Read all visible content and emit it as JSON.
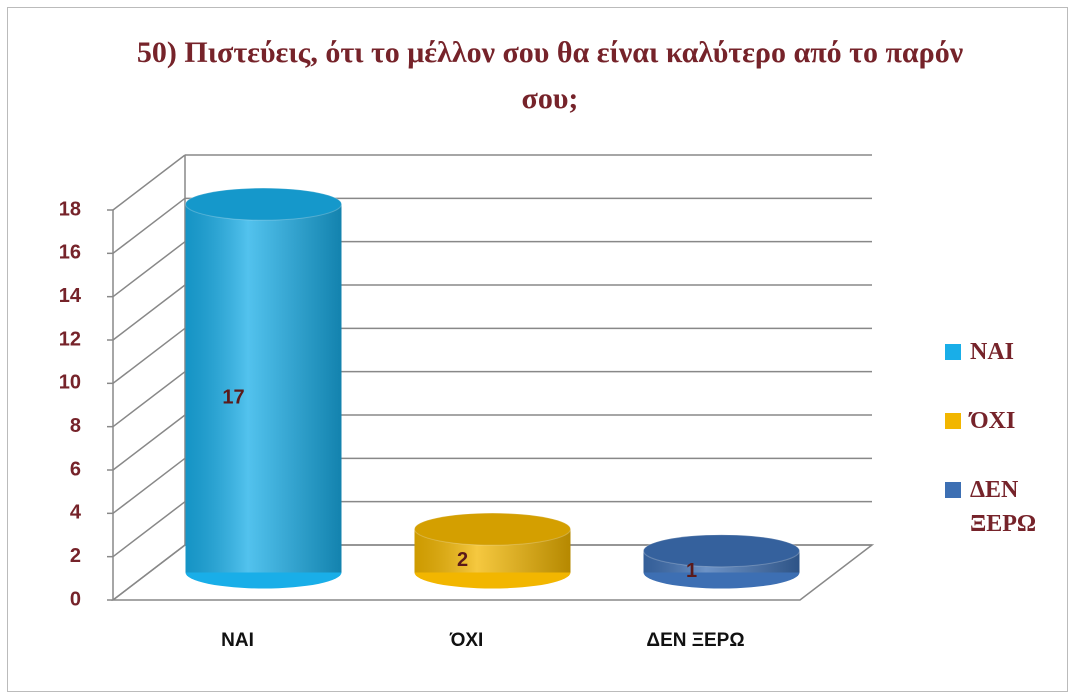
{
  "chart_data": {
    "type": "bar3d",
    "title": "50)  Πιστεύεις, ότι το μέλλον σου θα είναι καλύτερο από το παρόν σου;",
    "categories": [
      "ΝΑΙ",
      "ΌΧΙ",
      "ΔΕΝ ΞΕΡΩ"
    ],
    "values": [
      17,
      2,
      1
    ],
    "colors": [
      "#19aee8",
      "#f2b600",
      "#3d6fb3"
    ],
    "ylim": [
      0,
      18
    ],
    "yticks": [
      0,
      2,
      4,
      6,
      8,
      10,
      12,
      14,
      16,
      18
    ],
    "grid": true,
    "legend": "right"
  }
}
